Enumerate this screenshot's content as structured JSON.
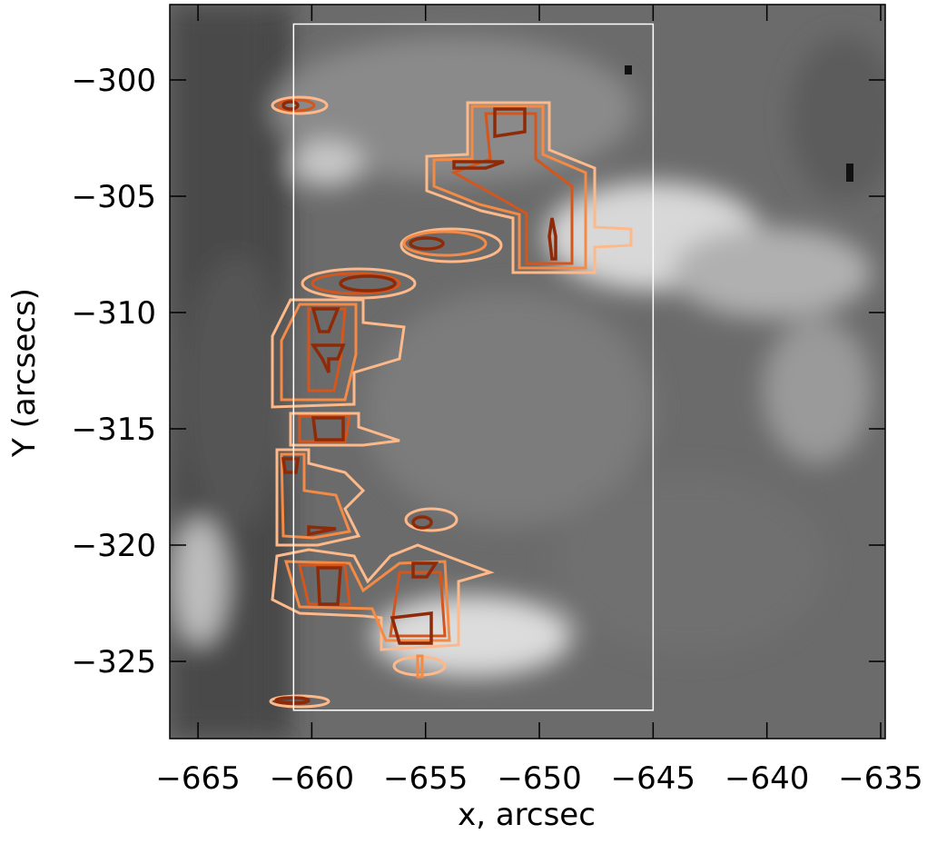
{
  "chart_data": {
    "type": "image",
    "xlabel": "x, arcsec",
    "ylabel": "Y (arcsecs)",
    "xlim": [
      -666.24,
      -634.8
    ],
    "ylim": [
      -328.32,
      -296.76
    ],
    "xticks": [
      {
        "value": -665,
        "label": "−665"
      },
      {
        "value": -660,
        "label": "−660"
      },
      {
        "value": -655,
        "label": "−655"
      },
      {
        "value": -650,
        "label": "−650"
      },
      {
        "value": -645,
        "label": "−645"
      },
      {
        "value": -640,
        "label": "−640"
      },
      {
        "value": -635,
        "label": "−635"
      }
    ],
    "yticks": [
      {
        "value": -300,
        "label": "−300"
      },
      {
        "value": -305,
        "label": "−305"
      },
      {
        "value": -310,
        "label": "−310"
      },
      {
        "value": -315,
        "label": "−315"
      },
      {
        "value": -320,
        "label": "−320"
      },
      {
        "value": -325,
        "label": "−325"
      }
    ],
    "box": {
      "x": [
        -660.8,
        -645
      ],
      "y": [
        -297.6,
        -327.1
      ],
      "color": "#ffffff"
    }
  }
}
